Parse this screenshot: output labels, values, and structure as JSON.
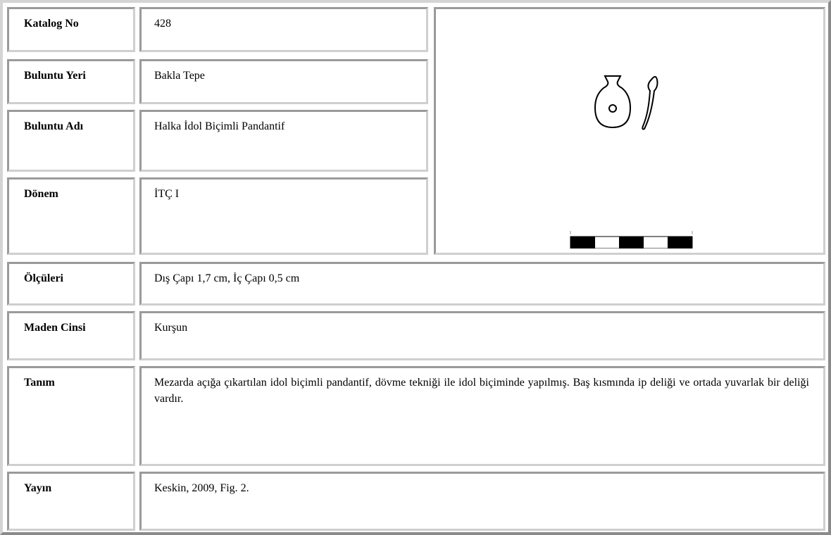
{
  "rows": [
    {
      "label": "Katalog No",
      "value": "428"
    },
    {
      "label": "Buluntu Yeri",
      "value": "Bakla Tepe"
    },
    {
      "label": "Buluntu Adı",
      "value": "Halka İdol Biçimli Pandantif"
    },
    {
      "label": "Dönem",
      "value": "İTÇ I"
    },
    {
      "label": "Ölçüleri",
      "value": "Dış Çapı 1,7 cm, İç Çapı 0,5 cm"
    },
    {
      "label": "Maden Cinsi",
      "value": "Kurşun"
    },
    {
      "label": "Tanım",
      "value": "Mezarda açığa çıkartılan idol biçimli pandantif, dövme tekniği ile idol biçiminde yapılmış. Baş kısmında ip deliği ve ortada yuvarlak bir deliği vardır."
    },
    {
      "label": "Yayın",
      "value": "Keskin, 2009, Fig. 2."
    }
  ]
}
